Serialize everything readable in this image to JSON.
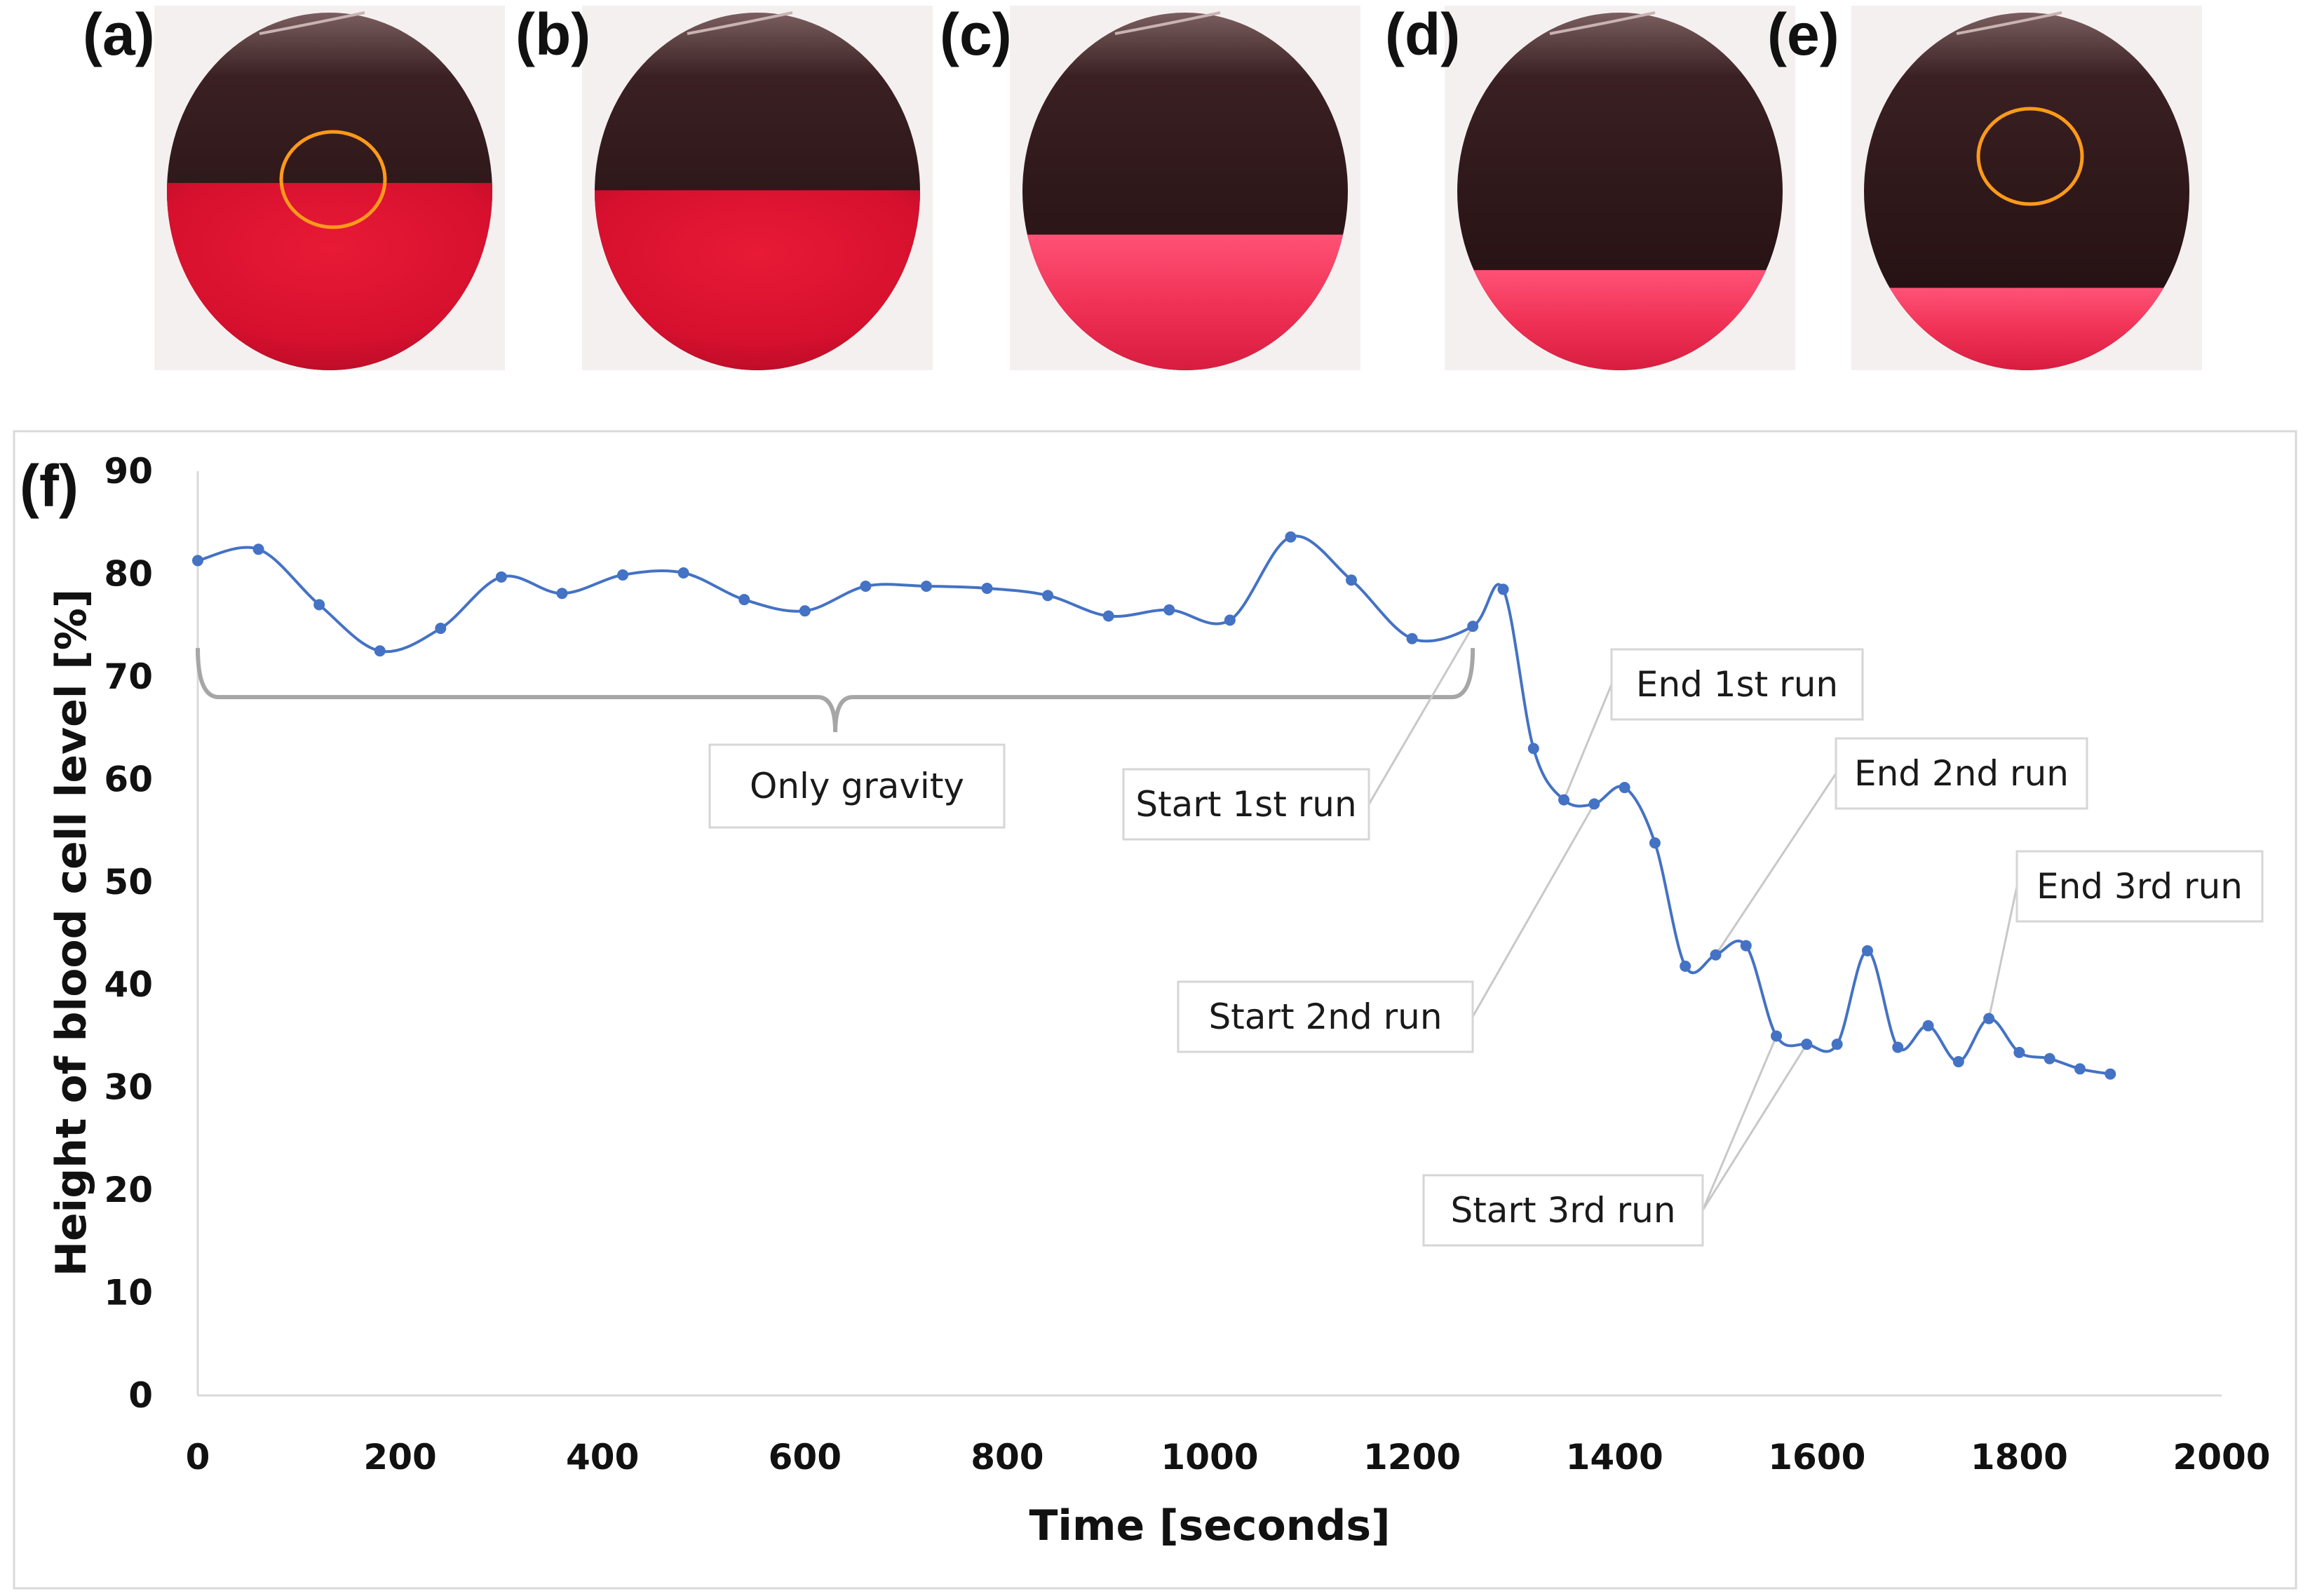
{
  "photo_panels": [
    {
      "label": "(a)",
      "blood_level": 81.3,
      "roi_marker": true
    },
    {
      "label": "(b)",
      "blood_level": 78.0,
      "roi_marker": false
    },
    {
      "label": "(c)",
      "blood_level": 58.0,
      "roi_marker": false
    },
    {
      "label": "(d)",
      "blood_level": 42.0,
      "roi_marker": false
    },
    {
      "label": "(e)",
      "blood_level": 34.0,
      "roi_marker": true
    }
  ],
  "chart_panel_label": "(f)",
  "colors": {
    "series": "#4472c4",
    "blood": "#e01838",
    "blood_light": "#f03a5c",
    "egg_shell": "#2a1416",
    "roi_circle": "#ff9a1a",
    "annotation_line": "#c8c8c8",
    "bracket": "#a6a6a6"
  },
  "chart_data": {
    "type": "line",
    "title": "",
    "xlabel": "Time [seconds]",
    "ylabel": "Height of blood cell level [%]",
    "xlim": [
      0,
      2000
    ],
    "ylim": [
      0,
      90
    ],
    "xticks": [
      0,
      200,
      400,
      600,
      800,
      1000,
      1200,
      1400,
      1600,
      1800,
      2000
    ],
    "yticks": [
      0,
      10,
      20,
      30,
      40,
      50,
      60,
      70,
      80,
      90
    ],
    "grid": false,
    "smooth": true,
    "series": [
      {
        "name": "Height of blood cell level",
        "x": [
          0,
          60,
          120,
          180,
          240,
          300,
          360,
          420,
          480,
          540,
          600,
          660,
          720,
          780,
          840,
          900,
          960,
          1020,
          1080,
          1140,
          1200,
          1260,
          1290,
          1320,
          1350,
          1380,
          1410,
          1440,
          1470,
          1500,
          1530,
          1560,
          1590,
          1620,
          1650,
          1680,
          1710,
          1740,
          1770,
          1800,
          1830,
          1860,
          1890
        ],
        "y": [
          81.3,
          82.4,
          77.0,
          72.5,
          74.7,
          79.7,
          78.1,
          79.9,
          80.1,
          77.5,
          76.4,
          78.8,
          78.8,
          78.6,
          77.9,
          75.9,
          76.5,
          75.5,
          83.6,
          79.4,
          73.7,
          74.9,
          78.5,
          63.0,
          58.0,
          57.6,
          59.2,
          53.8,
          41.8,
          42.9,
          43.8,
          35.0,
          34.2,
          34.2,
          43.3,
          33.9,
          36.0,
          32.5,
          36.7,
          33.4,
          32.8,
          31.8,
          31.3
        ]
      }
    ],
    "annotations": [
      {
        "text": "Only gravity",
        "type": "bracket",
        "x_range": [
          0,
          1260
        ],
        "at_y": 68
      },
      {
        "text": "Start 1st run",
        "points": [
          [
            1260,
            74.9
          ]
        ]
      },
      {
        "text": "End 1st run",
        "points": [
          [
            1350,
            58.0
          ]
        ]
      },
      {
        "text": "Start 2nd run",
        "points": [
          [
            1380,
            57.6
          ]
        ]
      },
      {
        "text": "End 2nd run",
        "points": [
          [
            1500,
            42.9
          ]
        ]
      },
      {
        "text": "Start 3rd run",
        "points": [
          [
            1560,
            35.0
          ],
          [
            1590,
            34.2
          ]
        ]
      },
      {
        "text": "End 3rd run",
        "points": [
          [
            1770,
            36.7
          ]
        ]
      }
    ]
  }
}
